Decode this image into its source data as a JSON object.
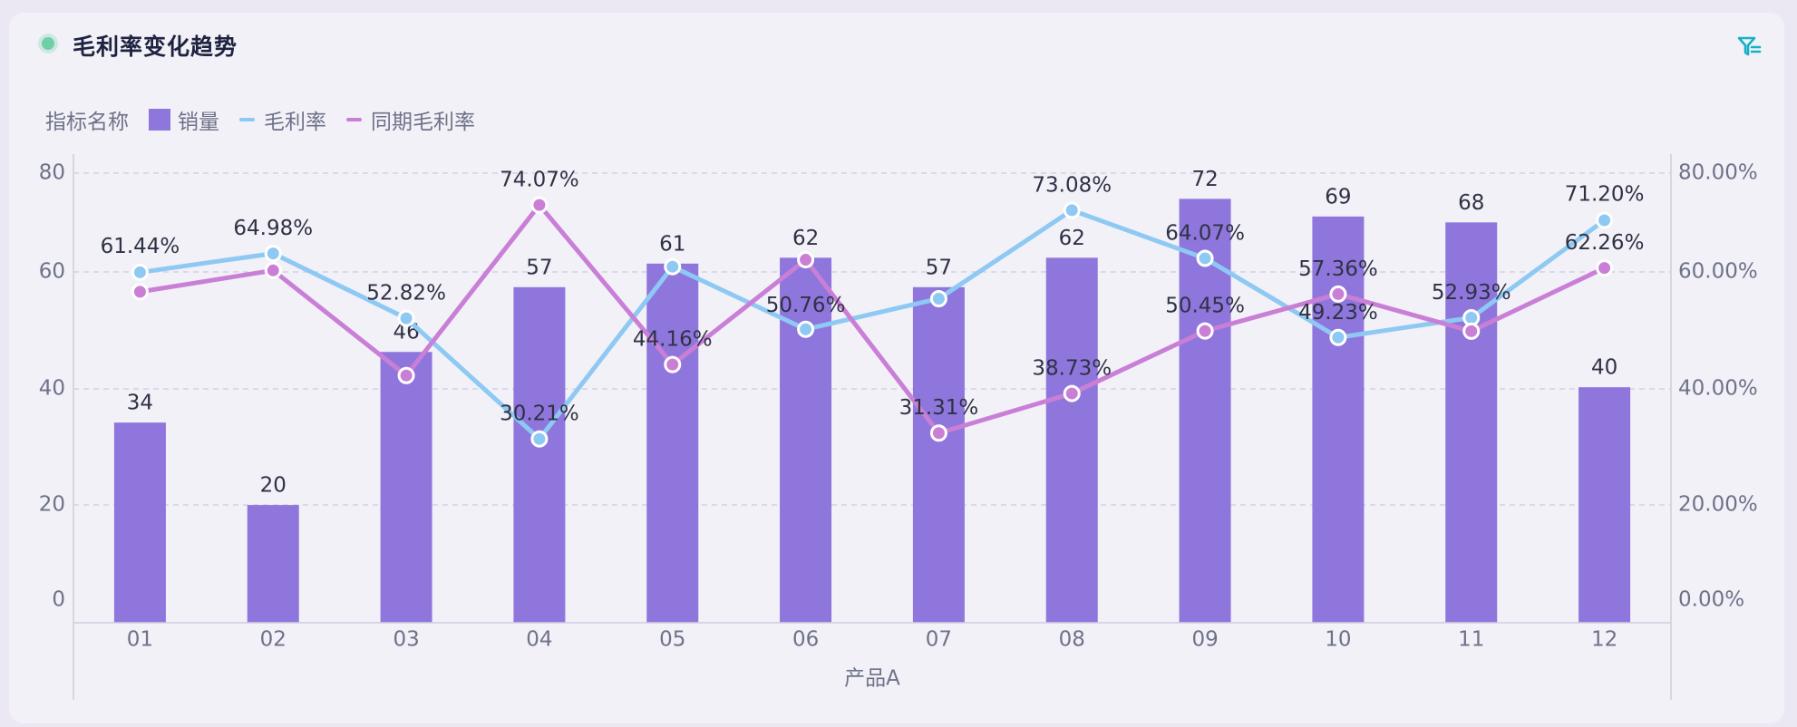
{
  "header": {
    "title": "毛利率变化趋势",
    "filter_icon": "filter-icon"
  },
  "legend": {
    "title": "指标名称",
    "items": [
      {
        "label": "销量",
        "type": "bar",
        "color": "#8f76dc"
      },
      {
        "label": "毛利率",
        "type": "line",
        "color": "#8ec9f3"
      },
      {
        "label": "同期毛利率",
        "type": "line",
        "color": "#c97fd6"
      }
    ]
  },
  "chart_data": {
    "type": "bar",
    "title": "毛利率变化趋势",
    "xlabel": "产品A",
    "categories": [
      "01",
      "02",
      "03",
      "04",
      "05",
      "06",
      "07",
      "08",
      "09",
      "10",
      "11",
      "12"
    ],
    "y_left": {
      "min": 0,
      "max": 80,
      "ticks": [
        "0",
        "20",
        "40",
        "60",
        "80"
      ]
    },
    "y_right": {
      "min": 0,
      "max": 80,
      "ticks": [
        "0.00%",
        "20.00%",
        "40.00%",
        "60.00%",
        "80.00%"
      ]
    },
    "grid": true,
    "series": [
      {
        "name": "销量",
        "type": "bar",
        "axis": "left",
        "color": "#8f76dc",
        "values": [
          34,
          20,
          46,
          57,
          61,
          62,
          57,
          62,
          72,
          69,
          68,
          40
        ],
        "labels": [
          "34",
          "20",
          "46",
          "57",
          "61",
          "62",
          "57",
          "62",
          "72",
          "69",
          "68",
          "40"
        ]
      },
      {
        "name": "毛利率",
        "type": "line",
        "axis": "right",
        "color": "#8ec9f3",
        "values": [
          61.44,
          64.98,
          52.82,
          30.21,
          62.5,
          50.76,
          56.5,
          73.08,
          64.07,
          49.23,
          52.93,
          71.2
        ],
        "labels": [
          "61.44%",
          "64.98%",
          "52.82%",
          "30.21%",
          "",
          "50.76%",
          "",
          "73.08%",
          "64.07%",
          "49.23%",
          "52.93%",
          "71.20%"
        ]
      },
      {
        "name": "同期毛利率",
        "type": "line",
        "axis": "right",
        "color": "#c97fd6",
        "values": [
          57.8,
          61.8,
          42.1,
          74.07,
          44.16,
          63.8,
          31.31,
          38.73,
          50.45,
          57.36,
          50.4,
          62.26
        ],
        "labels": [
          "",
          "",
          "",
          "74.07%",
          "44.16%",
          "",
          "31.31%",
          "38.73%",
          "50.45%",
          "57.36%",
          "",
          "62.26%"
        ]
      }
    ]
  }
}
